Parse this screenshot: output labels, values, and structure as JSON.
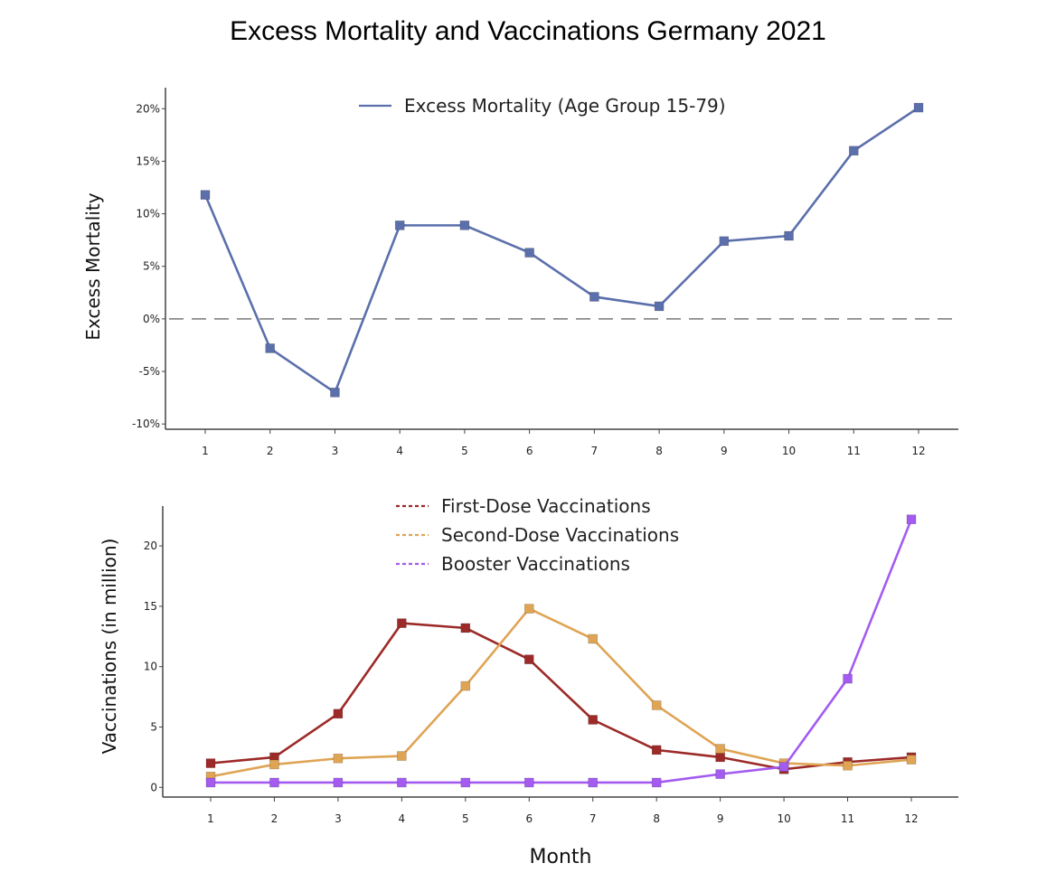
{
  "title": "Excess Mortality and Vaccinations Germany 2021",
  "chart_data": [
    {
      "type": "line",
      "ylabel": "Excess Mortality",
      "xlabel": "",
      "x": [
        1,
        2,
        3,
        4,
        5,
        6,
        7,
        8,
        9,
        10,
        11,
        12
      ],
      "x_tick_labels": [
        "1",
        "2",
        "3",
        "4",
        "5",
        "6",
        "7",
        "8",
        "9",
        "10",
        "11",
        "12"
      ],
      "ylim": [
        -10.5,
        22
      ],
      "y_ticks": [
        20,
        15,
        10,
        5,
        0,
        -5,
        -10
      ],
      "y_tick_labels": [
        "20%",
        "15%",
        "10%",
        "5%",
        "0%",
        "-5%",
        "-10%"
      ],
      "reference_line": {
        "y": 0,
        "style": "dashed"
      },
      "legend_position": "top",
      "series": [
        {
          "name": "Excess Mortality (Age Group 15-79)",
          "color": "#5b6fab",
          "values": [
            11.8,
            -2.8,
            -7.0,
            8.9,
            8.9,
            6.3,
            2.1,
            1.2,
            7.4,
            7.9,
            16.0,
            20.1
          ]
        }
      ]
    },
    {
      "type": "line",
      "ylabel": "Vaccinations (in million)",
      "xlabel": "Month",
      "x": [
        1,
        2,
        3,
        4,
        5,
        6,
        7,
        8,
        9,
        10,
        11,
        12
      ],
      "x_tick_labels": [
        "1",
        "2",
        "3",
        "4",
        "5",
        "6",
        "7",
        "8",
        "9",
        "10",
        "11",
        "12"
      ],
      "ylim": [
        -0.8,
        23.3
      ],
      "y_ticks": [
        20,
        15,
        10,
        5,
        0
      ],
      "y_tick_labels": [
        "20",
        "15",
        "10",
        "5",
        "0"
      ],
      "legend_position": "top",
      "series": [
        {
          "name": "First-Dose Vaccinations",
          "color": "#9c2a28",
          "values": [
            2.0,
            2.5,
            6.1,
            13.6,
            13.2,
            10.6,
            5.6,
            3.1,
            2.5,
            1.5,
            2.1,
            2.5
          ]
        },
        {
          "name": "Second-Dose Vaccinations",
          "color": "#dfa454",
          "values": [
            0.9,
            1.9,
            2.4,
            2.6,
            8.4,
            14.8,
            12.3,
            6.8,
            3.2,
            2.0,
            1.8,
            2.3
          ]
        },
        {
          "name": "Booster Vaccinations",
          "color": "#a35bf0",
          "values": [
            0.4,
            0.4,
            0.4,
            0.4,
            0.4,
            0.4,
            0.4,
            0.4,
            1.1,
            1.7,
            9.0,
            22.2
          ]
        }
      ]
    }
  ]
}
